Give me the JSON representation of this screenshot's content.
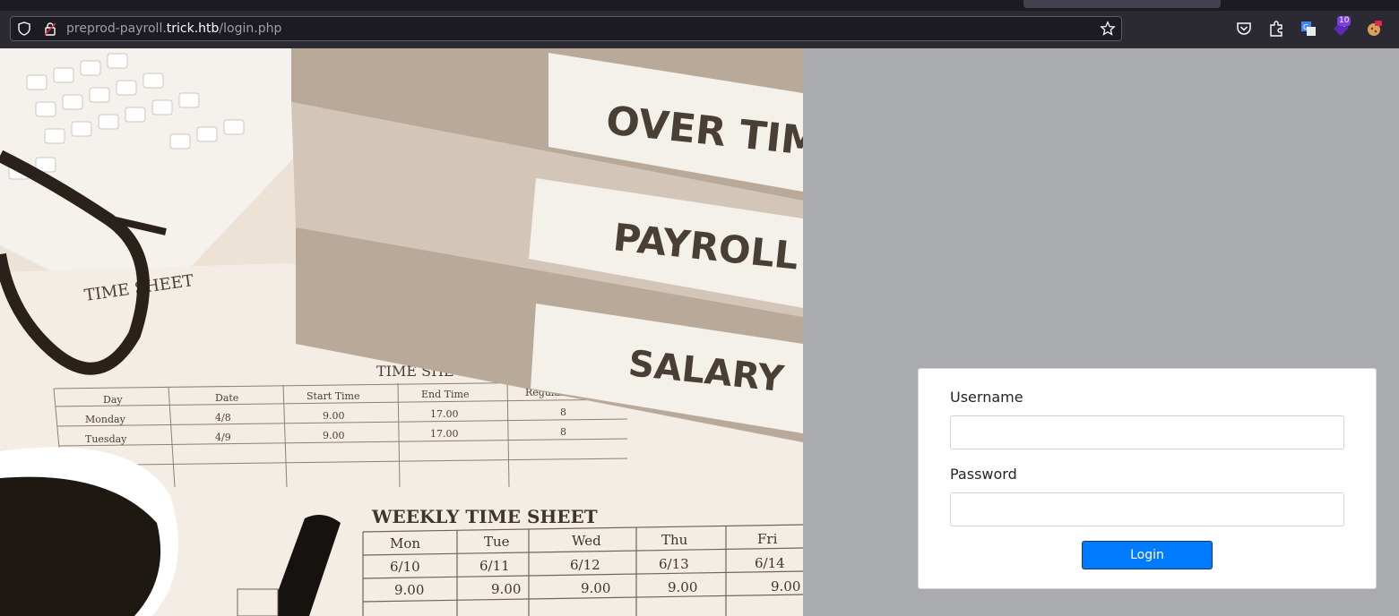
{
  "browser": {
    "url_prefix": "preprod-payroll.",
    "url_host": "trick.htb",
    "url_path": "/login.php",
    "extension_badge": "10"
  },
  "photo": {
    "binder_labels": [
      "OVER TIM",
      "PAYROLL",
      "SALARY"
    ],
    "sheet_titles": [
      "TIME SHEET",
      "TIME SHE",
      "WEEKLY TIME SHEET"
    ],
    "weekdays": [
      "Mon",
      "Tue",
      "Wed",
      "Thu",
      "Fri"
    ],
    "dates": [
      "6/10",
      "6/11",
      "6/12",
      "6/13",
      "6/14"
    ],
    "times": [
      "9.00",
      "9.00",
      "9.00",
      "9.00",
      "9.00"
    ],
    "day_col_headers": [
      "Day",
      "Date",
      "Start Time",
      "End Time",
      "Regular Ho"
    ],
    "rows": [
      [
        "Monday",
        "4/8",
        "9.00",
        "17.00",
        "8"
      ],
      [
        "Tuesday",
        "4/9",
        "9.00",
        "17.00",
        "8"
      ]
    ]
  },
  "login": {
    "username_label": "Username",
    "username_value": "",
    "password_label": "Password",
    "password_value": "",
    "button_label": "Login"
  },
  "colors": {
    "accent": "#007bff",
    "page_bg": "#a9abaf",
    "toolbar_bg": "#2b2a33"
  }
}
